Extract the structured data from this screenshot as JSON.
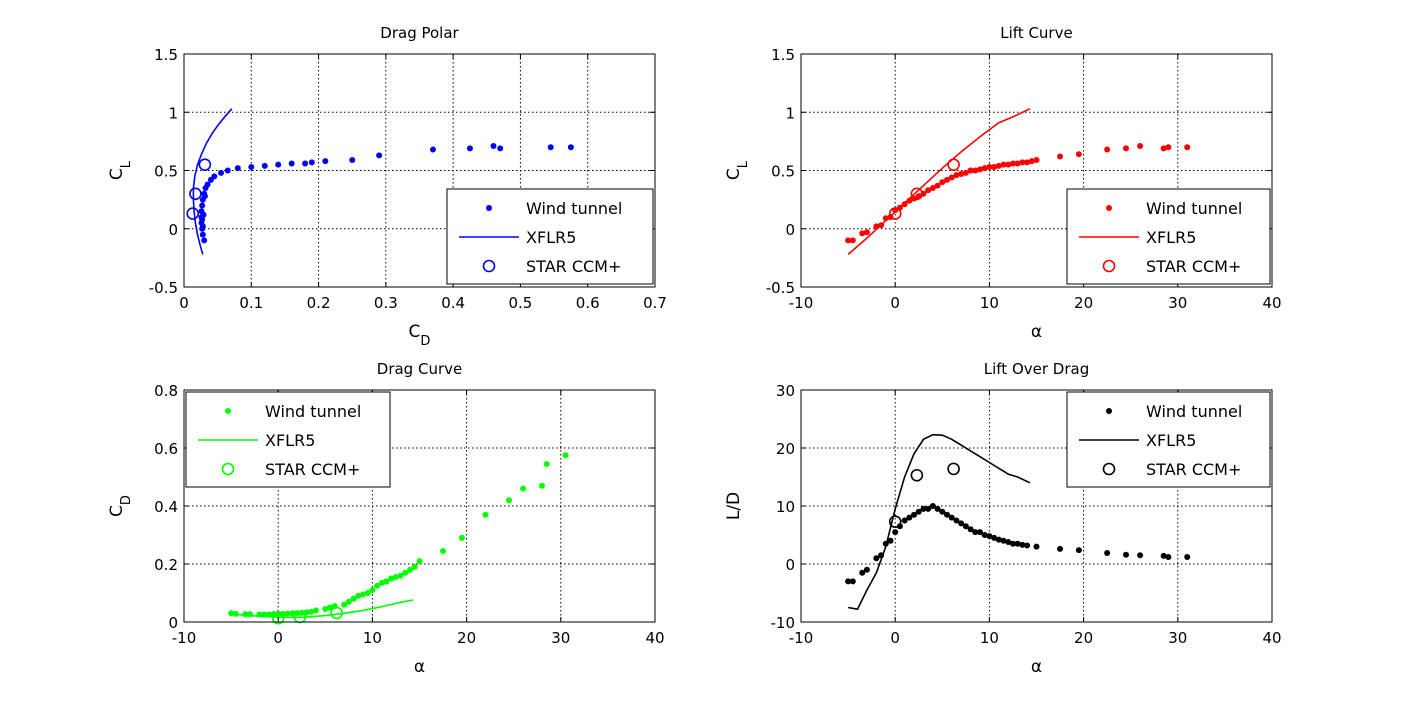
{
  "chart_data": [
    {
      "type": "scatter",
      "title": "Drag Polar",
      "xlabel": "C",
      "xlabel_sub": "D",
      "ylabel": "C",
      "ylabel_sub": "L",
      "xlim": [
        0,
        0.7
      ],
      "ylim": [
        -0.5,
        1.5
      ],
      "xticks": [
        0,
        0.1,
        0.2,
        0.3,
        0.4,
        0.5,
        0.6,
        0.7
      ],
      "xtick_labels": [
        "0",
        "0.1",
        "0.2",
        "0.3",
        "0.4",
        "0.5",
        "0.6",
        "0.7"
      ],
      "yticks": [
        -0.5,
        0,
        0.5,
        1,
        1.5
      ],
      "ytick_labels": [
        "-0.5",
        "0",
        "0.5",
        "1",
        "1.5"
      ],
      "grid": true,
      "color": "#0000ff",
      "legend_position": "bottom-right",
      "series": [
        {
          "name": "Wind tunnel",
          "style": "dot",
          "x": [
            0.03,
            0.028,
            0.027,
            0.026,
            0.026,
            0.026,
            0.027,
            0.028,
            0.03,
            0.032,
            0.035,
            0.04,
            0.045,
            0.055,
            0.065,
            0.08,
            0.1,
            0.12,
            0.14,
            0.16,
            0.18,
            0.19,
            0.21,
            0.25,
            0.29,
            0.37,
            0.425,
            0.46,
            0.47,
            0.545,
            0.575,
            0.028,
            0.027,
            0.029,
            0.031
          ],
          "y": [
            -0.1,
            -0.05,
            0.0,
            0.05,
            0.1,
            0.15,
            0.2,
            0.25,
            0.3,
            0.35,
            0.38,
            0.42,
            0.45,
            0.48,
            0.5,
            0.52,
            0.53,
            0.54,
            0.55,
            0.56,
            0.56,
            0.57,
            0.58,
            0.59,
            0.63,
            0.68,
            0.69,
            0.71,
            0.69,
            0.7,
            0.7,
            0.02,
            0.08,
            0.12,
            0.28
          ]
        },
        {
          "name": "XFLR5",
          "style": "line",
          "x": [
            0.028,
            0.024,
            0.02,
            0.017,
            0.015,
            0.014,
            0.014,
            0.016,
            0.02,
            0.026,
            0.033,
            0.042,
            0.052,
            0.062,
            0.071
          ],
          "y": [
            -0.22,
            -0.14,
            -0.05,
            0.05,
            0.15,
            0.25,
            0.35,
            0.45,
            0.55,
            0.64,
            0.73,
            0.82,
            0.9,
            0.97,
            1.03
          ]
        },
        {
          "name": "STAR CCM+",
          "style": "circle",
          "x": [
            0.013,
            0.017,
            0.031
          ],
          "y": [
            0.13,
            0.3,
            0.55
          ]
        }
      ]
    },
    {
      "type": "scatter",
      "title": "Lift Curve",
      "xlabel": "α",
      "xlabel_sub": "",
      "ylabel": "C",
      "ylabel_sub": "L",
      "xlim": [
        -10,
        40
      ],
      "ylim": [
        -0.5,
        1.5
      ],
      "xticks": [
        -10,
        0,
        10,
        20,
        30,
        40
      ],
      "xtick_labels": [
        "-10",
        "0",
        "10",
        "20",
        "30",
        "40"
      ],
      "yticks": [
        -0.5,
        0,
        0.5,
        1,
        1.5
      ],
      "ytick_labels": [
        "-0.5",
        "0",
        "0.5",
        "1",
        "1.5"
      ],
      "grid": true,
      "color": "#ff0000",
      "legend_position": "bottom-right",
      "series": [
        {
          "name": "Wind tunnel",
          "style": "dot",
          "x": [
            -5,
            -4.5,
            -3.5,
            -3,
            -2,
            -1.5,
            -1,
            -0.5,
            0,
            0.5,
            1,
            1.5,
            2,
            2.5,
            3,
            3.5,
            4,
            4.5,
            5,
            5.5,
            6,
            6.5,
            7,
            7.5,
            8,
            8.5,
            9,
            9.5,
            10,
            10.5,
            11,
            11.5,
            12,
            12.5,
            13,
            13.5,
            14,
            14.5,
            15,
            17.5,
            19.5,
            22.5,
            24.5,
            26,
            28.5,
            29,
            31
          ],
          "y": [
            -0.1,
            -0.1,
            -0.04,
            -0.03,
            0.02,
            0.03,
            0.09,
            0.1,
            0.16,
            0.18,
            0.21,
            0.24,
            0.26,
            0.28,
            0.3,
            0.33,
            0.35,
            0.37,
            0.4,
            0.42,
            0.44,
            0.46,
            0.47,
            0.48,
            0.5,
            0.5,
            0.51,
            0.52,
            0.53,
            0.53,
            0.54,
            0.55,
            0.55,
            0.56,
            0.56,
            0.57,
            0.57,
            0.58,
            0.59,
            0.62,
            0.64,
            0.68,
            0.69,
            0.71,
            0.69,
            0.7,
            0.7
          ]
        },
        {
          "name": "XFLR5",
          "style": "line",
          "x": [
            -5,
            -3,
            -1,
            1,
            3,
            5,
            7,
            9,
            11,
            12.5,
            14.3
          ],
          "y": [
            -0.22,
            -0.08,
            0.07,
            0.22,
            0.37,
            0.52,
            0.66,
            0.79,
            0.91,
            0.96,
            1.03
          ]
        },
        {
          "name": "STAR CCM+",
          "style": "circle",
          "x": [
            0,
            2.3,
            6.2
          ],
          "y": [
            0.13,
            0.3,
            0.55
          ]
        }
      ]
    },
    {
      "type": "scatter",
      "title": "Drag Curve",
      "xlabel": "α",
      "xlabel_sub": "",
      "ylabel": "C",
      "ylabel_sub": "D",
      "xlim": [
        -10,
        40
      ],
      "ylim": [
        0,
        0.8
      ],
      "xticks": [
        -10,
        0,
        10,
        20,
        30,
        40
      ],
      "xtick_labels": [
        "-10",
        "0",
        "10",
        "20",
        "30",
        "40"
      ],
      "yticks": [
        0,
        0.2,
        0.4,
        0.6,
        0.8
      ],
      "ytick_labels": [
        "0",
        "0.2",
        "0.4",
        "0.6",
        "0.8"
      ],
      "grid": true,
      "color": "#00ff00",
      "legend_position": "top-left",
      "series": [
        {
          "name": "Wind tunnel",
          "style": "dot",
          "x": [
            -5,
            -4.5,
            -3.5,
            -3,
            -2,
            -1.5,
            -1,
            -0.5,
            0,
            0.5,
            1,
            1.5,
            2,
            2.5,
            3,
            3.5,
            4,
            5,
            5.5,
            6,
            7,
            7.5,
            8,
            8.5,
            9,
            9.5,
            10,
            10.5,
            11,
            11.5,
            12,
            12.5,
            13,
            13.5,
            14,
            14.5,
            15,
            17.5,
            19.5,
            22,
            24.5,
            26,
            28,
            28.5,
            30.5
          ],
          "y": [
            0.03,
            0.028,
            0.027,
            0.027,
            0.026,
            0.026,
            0.026,
            0.027,
            0.028,
            0.028,
            0.029,
            0.03,
            0.031,
            0.032,
            0.033,
            0.035,
            0.04,
            0.045,
            0.05,
            0.055,
            0.06,
            0.07,
            0.08,
            0.09,
            0.095,
            0.1,
            0.11,
            0.125,
            0.135,
            0.14,
            0.15,
            0.155,
            0.16,
            0.17,
            0.18,
            0.19,
            0.21,
            0.245,
            0.29,
            0.37,
            0.42,
            0.46,
            0.47,
            0.545,
            0.575
          ]
        },
        {
          "name": "XFLR5",
          "style": "line",
          "x": [
            -5,
            -3,
            -1,
            1,
            3,
            5,
            7,
            9,
            11,
            13,
            14.3
          ],
          "y": [
            0.028,
            0.022,
            0.018,
            0.016,
            0.017,
            0.022,
            0.03,
            0.04,
            0.053,
            0.068,
            0.076
          ]
        },
        {
          "name": "STAR CCM+",
          "style": "circle",
          "x": [
            0,
            2.3,
            6.2
          ],
          "y": [
            0.013,
            0.017,
            0.031
          ]
        }
      ]
    },
    {
      "type": "scatter",
      "title": "Lift Over Drag",
      "xlabel": "α",
      "xlabel_sub": "",
      "ylabel": "L/D",
      "ylabel_sub": "",
      "xlim": [
        -10,
        40
      ],
      "ylim": [
        -10,
        30
      ],
      "xticks": [
        -10,
        0,
        10,
        20,
        30,
        40
      ],
      "xtick_labels": [
        "-10",
        "0",
        "10",
        "20",
        "30",
        "40"
      ],
      "yticks": [
        -10,
        0,
        10,
        20,
        30
      ],
      "ytick_labels": [
        "-10",
        "0",
        "10",
        "20",
        "30"
      ],
      "grid": true,
      "color": "#000000",
      "legend_position": "top-right",
      "series": [
        {
          "name": "Wind tunnel",
          "style": "dot",
          "x": [
            -5,
            -4.5,
            -3.5,
            -3,
            -2,
            -1.5,
            -1,
            -0.5,
            0,
            0.5,
            1,
            1.5,
            2,
            2.5,
            3,
            3.5,
            4,
            4.5,
            5,
            5.5,
            6,
            6.5,
            7,
            7.5,
            8,
            8.5,
            9,
            9.5,
            10,
            10.5,
            11,
            11.5,
            12,
            12.5,
            13,
            13.5,
            14,
            15,
            17.5,
            19.5,
            22.5,
            24.5,
            26,
            28.5,
            29,
            31
          ],
          "y": [
            -3.0,
            -3.0,
            -1.5,
            -1.0,
            1.0,
            1.5,
            3.5,
            4.0,
            5.5,
            6.5,
            7.5,
            8.0,
            8.5,
            9.0,
            9.5,
            9.5,
            10.0,
            9.5,
            9.0,
            8.5,
            8.0,
            7.5,
            7.0,
            6.5,
            6.0,
            5.5,
            5.5,
            5.0,
            4.8,
            4.5,
            4.2,
            4.0,
            3.8,
            3.5,
            3.5,
            3.3,
            3.2,
            3.0,
            2.6,
            2.4,
            1.9,
            1.6,
            1.5,
            1.4,
            1.2,
            1.2
          ]
        },
        {
          "name": "XFLR5",
          "style": "line",
          "x": [
            -5,
            -4,
            -3,
            -2,
            -1,
            0,
            1,
            2,
            3,
            4,
            5,
            6,
            7,
            8,
            9,
            10,
            11,
            12,
            13,
            14.3
          ],
          "y": [
            -7.5,
            -7.8,
            -4.5,
            -1.5,
            3.0,
            9.5,
            15.0,
            19.0,
            21.5,
            22.3,
            22.2,
            21.5,
            20.5,
            19.5,
            18.5,
            17.5,
            16.5,
            15.5,
            15.0,
            14.0
          ]
        },
        {
          "name": "STAR CCM+",
          "style": "circle",
          "x": [
            0,
            2.3,
            6.2
          ],
          "y": [
            7.3,
            15.3,
            16.4
          ]
        }
      ]
    }
  ]
}
